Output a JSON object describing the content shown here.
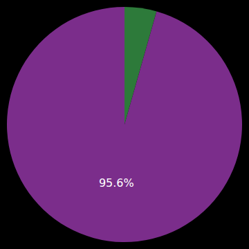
{
  "chart_data": {
    "type": "pie",
    "values": [
      4.4,
      95.6
    ],
    "colors": [
      "#2d7a3a",
      "#7b2d8b"
    ],
    "data_labels": true,
    "value_labels": [
      null,
      "95.6%"
    ]
  }
}
